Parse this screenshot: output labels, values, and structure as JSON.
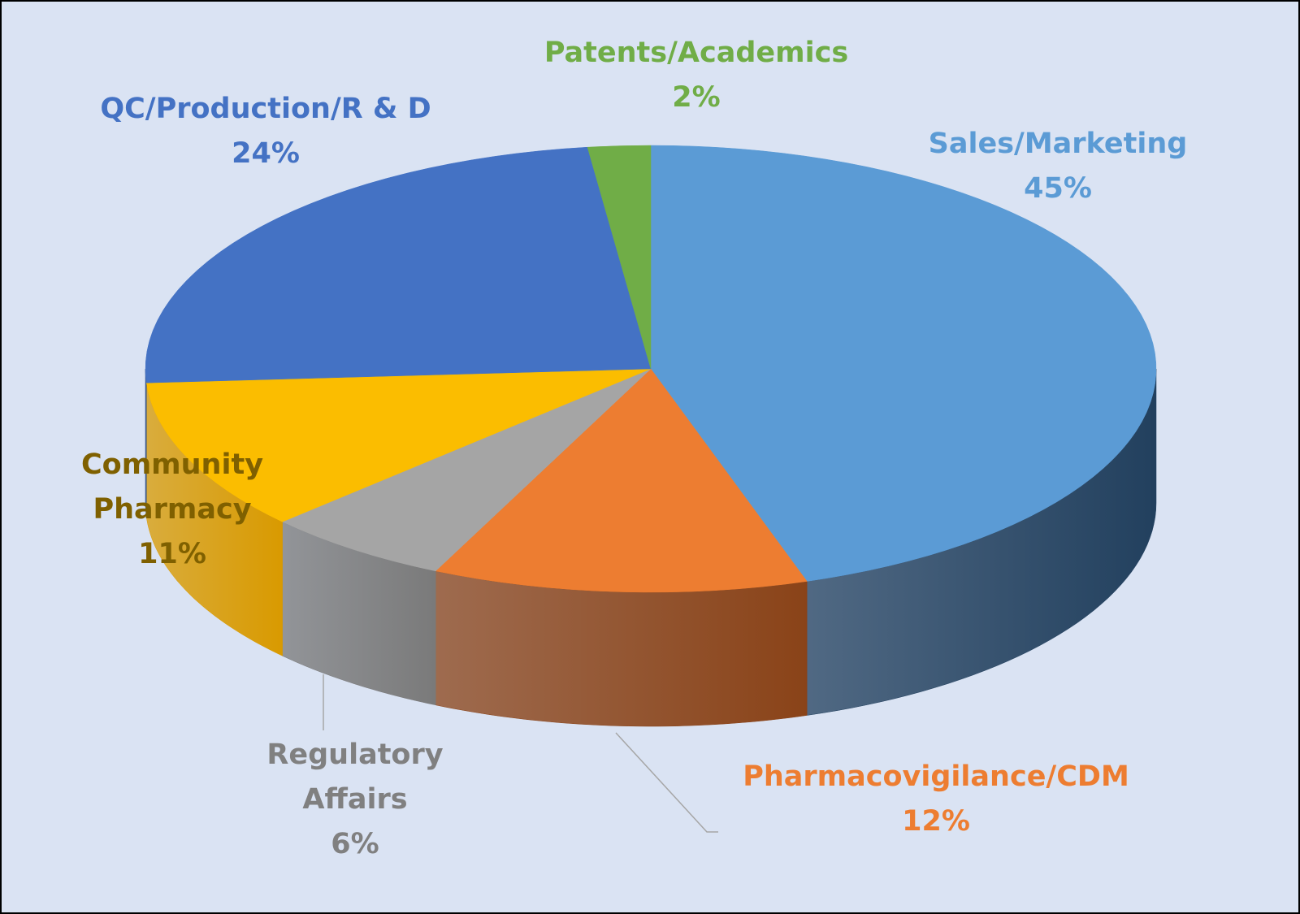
{
  "chart_data": {
    "type": "pie",
    "style": "3d",
    "title": "",
    "start": "top",
    "direction": "clockwise",
    "slices": [
      {
        "label": "Sales/Marketing",
        "value": 45,
        "value_label": "45%",
        "color": "#5b9bd5",
        "side": "#22405e",
        "label_color": "#5b9bd5"
      },
      {
        "label": "Pharmacovigilance/CDM",
        "value": 12,
        "value_label": "12%",
        "color": "#ed7d31",
        "side": "#8a4318",
        "label_color": "#ed7d31"
      },
      {
        "label": "Regulatory Affairs",
        "value": 6,
        "value_label": "6%",
        "color": "#a5a5a5",
        "side": "#7a7a7a",
        "label_color": "#808080"
      },
      {
        "label": "Community Pharmacy",
        "value": 11,
        "value_label": "11%",
        "color": "#fbbd00",
        "side": "#d99a00",
        "label_color": "#7f6000"
      },
      {
        "label": "QC/Production/R & D",
        "value": 24,
        "value_label": "24%",
        "color": "#4472c4",
        "side": "#2c4c85",
        "label_color": "#4472c4"
      },
      {
        "label": "Patents/Academics",
        "value": 2,
        "value_label": "2%",
        "color": "#70ad47",
        "side": "#4d7a30",
        "label_color": "#70ad47"
      }
    ]
  }
}
